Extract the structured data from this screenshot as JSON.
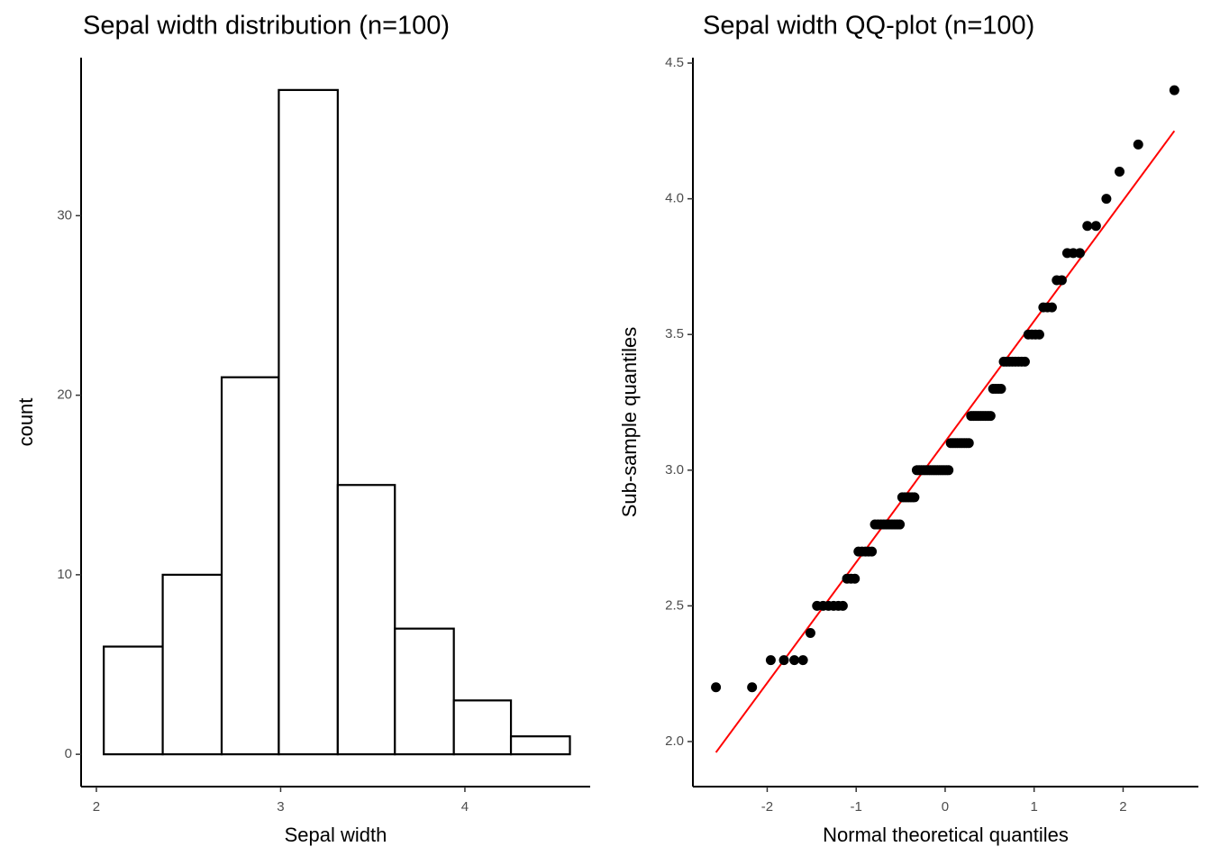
{
  "chart_data": [
    {
      "type": "histogram",
      "title": "Sepal width distribution (n=100)",
      "x_label": "Sepal width",
      "y_label": "count",
      "bins": [
        2.04,
        2.36,
        2.68,
        2.99,
        3.31,
        3.62,
        3.94,
        4.25,
        4.57
      ],
      "values": [
        6,
        10,
        21,
        37,
        15,
        7,
        3,
        1
      ],
      "fill": "#ffffff",
      "edge_color": "#000000",
      "xlim": [
        1.917,
        4.68
      ],
      "xticks": [
        2,
        3,
        4
      ],
      "ylim": [
        -1.8,
        38.8
      ],
      "yticks": [
        0,
        10,
        20,
        30
      ],
      "grid": false
    },
    {
      "type": "scatter",
      "title": "Sepal width QQ-plot (n=100)",
      "x_label": "Normal theoretical quantiles",
      "y_label": "Sub-sample quantiles",
      "x": [
        -2.576,
        -2.17,
        -1.96,
        -1.812,
        -1.695,
        -1.598,
        -1.514,
        -1.44,
        -1.372,
        -1.311,
        -1.254,
        -1.2,
        -1.15,
        -1.103,
        -1.058,
        -1.015,
        -0.974,
        -0.935,
        -0.896,
        -0.86,
        -0.824,
        -0.789,
        -0.755,
        -0.722,
        -0.69,
        -0.659,
        -0.628,
        -0.598,
        -0.568,
        -0.539,
        -0.51,
        -0.482,
        -0.454,
        -0.426,
        -0.399,
        -0.372,
        -0.345,
        -0.319,
        -0.292,
        -0.266,
        -0.24,
        -0.215,
        -0.189,
        -0.164,
        -0.138,
        -0.113,
        -0.088,
        -0.063,
        -0.038,
        -0.013,
        0.013,
        0.038,
        0.063,
        0.088,
        0.113,
        0.138,
        0.164,
        0.189,
        0.215,
        0.24,
        0.266,
        0.292,
        0.319,
        0.345,
        0.372,
        0.399,
        0.426,
        0.454,
        0.482,
        0.51,
        0.539,
        0.568,
        0.598,
        0.628,
        0.659,
        0.69,
        0.722,
        0.755,
        0.789,
        0.824,
        0.86,
        0.896,
        0.935,
        0.974,
        1.015,
        1.058,
        1.103,
        1.15,
        1.2,
        1.254,
        1.311,
        1.372,
        1.44,
        1.514,
        1.598,
        1.695,
        1.812,
        1.96,
        2.17,
        2.576
      ],
      "series": [
        {
          "color": "#000000",
          "values": [
            2.2,
            2.2,
            2.3,
            2.3,
            2.3,
            2.3,
            2.4,
            2.5,
            2.5,
            2.5,
            2.5,
            2.5,
            2.5,
            2.6,
            2.6,
            2.6,
            2.7,
            2.7,
            2.7,
            2.7,
            2.7,
            2.8,
            2.8,
            2.8,
            2.8,
            2.8,
            2.8,
            2.8,
            2.8,
            2.8,
            2.8,
            2.9,
            2.9,
            2.9,
            2.9,
            2.9,
            2.9,
            3,
            3,
            3,
            3,
            3,
            3,
            3,
            3,
            3,
            3,
            3,
            3,
            3,
            3,
            3,
            3.1,
            3.1,
            3.1,
            3.1,
            3.1,
            3.1,
            3.1,
            3.1,
            3.1,
            3.2,
            3.2,
            3.2,
            3.2,
            3.2,
            3.2,
            3.2,
            3.2,
            3.2,
            3.3,
            3.3,
            3.3,
            3.3,
            3.4,
            3.4,
            3.4,
            3.4,
            3.4,
            3.4,
            3.4,
            3.4,
            3.5,
            3.5,
            3.5,
            3.5,
            3.6,
            3.6,
            3.6,
            3.7,
            3.7,
            3.8,
            3.8,
            3.8,
            3.9,
            3.9,
            4,
            4.1,
            4.2,
            4.4
          ]
        }
      ],
      "line": {
        "color": "#ff0000",
        "x": [
          -2.576,
          2.576
        ],
        "y": [
          1.96,
          4.25
        ]
      },
      "xlim": [
        -2.835,
        2.846
      ],
      "xticks": [
        -2,
        -1,
        0,
        1,
        2
      ],
      "ylim": [
        1.834,
        4.52
      ],
      "yticks": [
        {
          "value": 2,
          "label": "2.0"
        },
        2.5,
        {
          "value": 3,
          "label": "3.0"
        },
        3.5,
        {
          "value": 4,
          "label": "4.0"
        },
        4.5
      ],
      "grid": false
    }
  ]
}
